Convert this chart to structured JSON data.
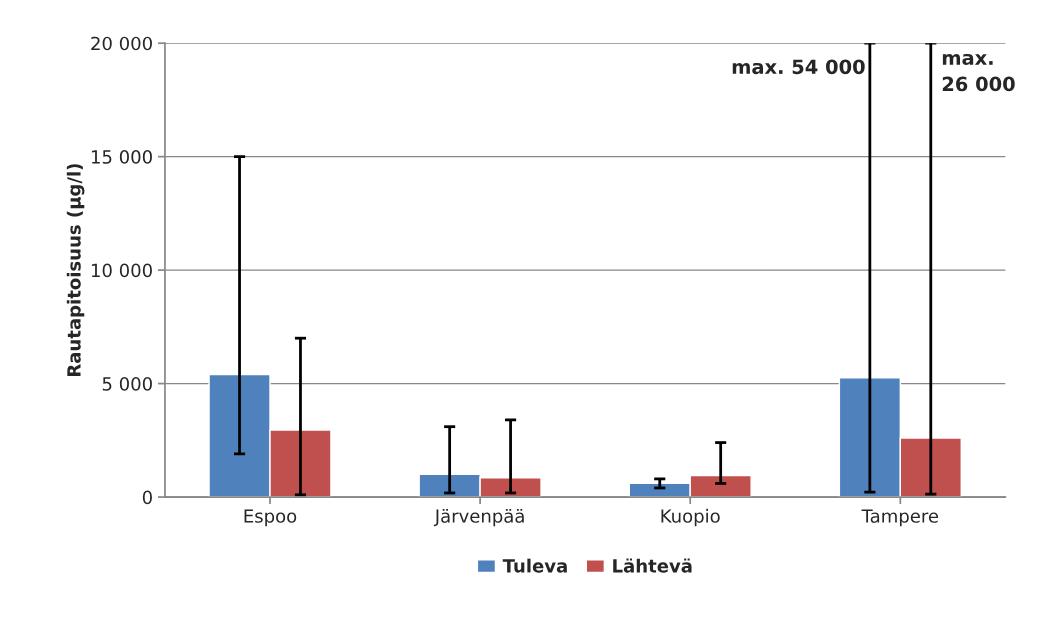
{
  "chart_data": {
    "type": "bar",
    "ylabel": "Rautapitoisuus (µg/l)",
    "categories": [
      "Espoo",
      "Järvenpää",
      "Kuopio",
      "Tampere"
    ],
    "series": [
      {
        "name": "Tuleva",
        "color": "#4f81bd",
        "values": [
          5400,
          1000,
          600,
          5250
        ],
        "errors": [
          [
            1900,
            15000
          ],
          [
            180,
            3100
          ],
          [
            400,
            800
          ],
          [
            220,
            20000
          ]
        ]
      },
      {
        "name": "Lähtevä",
        "color": "#c0504d",
        "values": [
          2950,
          850,
          950,
          2600
        ],
        "errors": [
          [
            100,
            7000
          ],
          [
            180,
            3400
          ],
          [
            600,
            2400
          ],
          [
            130,
            20000
          ]
        ]
      }
    ],
    "ylim": [
      0,
      20000
    ],
    "yticks": [
      {
        "value": 0,
        "label": "0"
      },
      {
        "value": 5000,
        "label": "5 000"
      },
      {
        "value": 10000,
        "label": "10 000"
      },
      {
        "value": 15000,
        "label": "15 000"
      },
      {
        "value": 20000,
        "label": "20 000"
      }
    ],
    "grid": "y",
    "legend": "bottom",
    "annotations": [
      "max. 54 000",
      "max.\n26 000"
    ]
  }
}
